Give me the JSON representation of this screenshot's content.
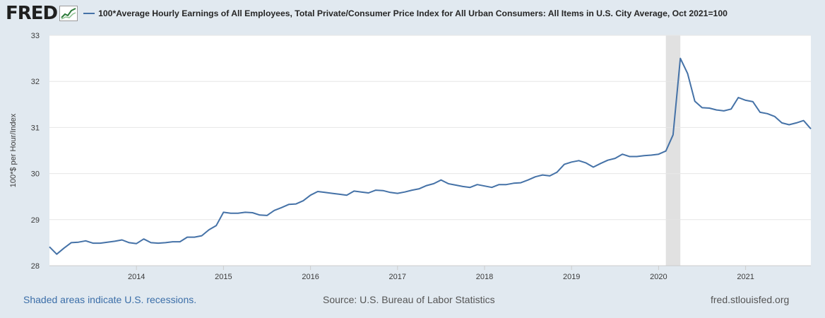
{
  "header": {
    "logo_text": "FRED",
    "logo_icon": "trend-chart-icon",
    "legend_label": "100*Average Hourly Earnings of All Employees, Total Private/Consumer Price Index for All Urban Consumers: All Items in U.S. City Average, Oct 2021=100"
  },
  "footer": {
    "recessions_note": "Shaded areas indicate U.S. recessions.",
    "source": "Source: U.S. Bureau of Labor Statistics",
    "site": "fred.stlouisfed.org"
  },
  "colors": {
    "line": "#4572a7",
    "recession": "#e1e1e1",
    "plot_bg": "#ffffff",
    "page_bg": "#e1e9f0",
    "grid": "#e6e6e6"
  },
  "chart_data": {
    "type": "line",
    "title": "",
    "xlabel": "",
    "ylabel": "100*$ per Hour/Index",
    "ylim": [
      28,
      33
    ],
    "yticks": [
      28,
      29,
      30,
      31,
      32,
      33
    ],
    "xlim": [
      "2013-01",
      "2021-10"
    ],
    "xticks": [
      "2014",
      "2015",
      "2016",
      "2017",
      "2018",
      "2019",
      "2020",
      "2021"
    ],
    "grid": true,
    "legend": "top",
    "recessions": [
      [
        "2020-02",
        "2020-04"
      ]
    ],
    "series": [
      {
        "name": "100*Average Hourly Earnings of All Employees, Total Private/Consumer Price Index for All Urban Consumers: All Items in U.S. City Average, Oct 2021=100",
        "x": [
          "2013-01",
          "2013-02",
          "2013-03",
          "2013-04",
          "2013-05",
          "2013-06",
          "2013-07",
          "2013-08",
          "2013-09",
          "2013-10",
          "2013-11",
          "2013-12",
          "2014-01",
          "2014-02",
          "2014-03",
          "2014-04",
          "2014-05",
          "2014-06",
          "2014-07",
          "2014-08",
          "2014-09",
          "2014-10",
          "2014-11",
          "2014-12",
          "2015-01",
          "2015-02",
          "2015-03",
          "2015-04",
          "2015-05",
          "2015-06",
          "2015-07",
          "2015-08",
          "2015-09",
          "2015-10",
          "2015-11",
          "2015-12",
          "2016-01",
          "2016-02",
          "2016-03",
          "2016-04",
          "2016-05",
          "2016-06",
          "2016-07",
          "2016-08",
          "2016-09",
          "2016-10",
          "2016-11",
          "2016-12",
          "2017-01",
          "2017-02",
          "2017-03",
          "2017-04",
          "2017-05",
          "2017-06",
          "2017-07",
          "2017-08",
          "2017-09",
          "2017-10",
          "2017-11",
          "2017-12",
          "2018-01",
          "2018-02",
          "2018-03",
          "2018-04",
          "2018-05",
          "2018-06",
          "2018-07",
          "2018-08",
          "2018-09",
          "2018-10",
          "2018-11",
          "2018-12",
          "2019-01",
          "2019-02",
          "2019-03",
          "2019-04",
          "2019-05",
          "2019-06",
          "2019-07",
          "2019-08",
          "2019-09",
          "2019-10",
          "2019-11",
          "2019-12",
          "2020-01",
          "2020-02",
          "2020-03",
          "2020-04",
          "2020-05",
          "2020-06",
          "2020-07",
          "2020-08",
          "2020-09",
          "2020-10",
          "2020-11",
          "2020-12",
          "2021-01",
          "2021-02",
          "2021-03",
          "2021-04",
          "2021-05",
          "2021-06",
          "2021-07",
          "2021-08",
          "2021-09",
          "2021-10"
        ],
        "y": [
          28.41,
          28.25,
          28.38,
          28.5,
          28.51,
          28.54,
          28.49,
          28.49,
          28.51,
          28.53,
          28.56,
          28.5,
          28.48,
          28.58,
          28.5,
          28.49,
          28.5,
          28.52,
          28.52,
          28.62,
          28.62,
          28.65,
          28.78,
          28.87,
          29.16,
          29.14,
          29.14,
          29.16,
          29.15,
          29.1,
          29.09,
          29.2,
          29.26,
          29.33,
          29.34,
          29.41,
          29.53,
          29.61,
          29.59,
          29.57,
          29.55,
          29.53,
          29.62,
          29.6,
          29.58,
          29.64,
          29.63,
          29.59,
          29.57,
          29.6,
          29.64,
          29.67,
          29.74,
          29.78,
          29.86,
          29.78,
          29.75,
          29.72,
          29.7,
          29.76,
          29.73,
          29.7,
          29.76,
          29.76,
          29.79,
          29.8,
          29.86,
          29.93,
          29.97,
          29.95,
          30.03,
          30.2,
          30.25,
          30.28,
          30.23,
          30.14,
          30.22,
          30.29,
          30.33,
          30.42,
          30.37,
          30.37,
          30.39,
          30.4,
          30.42,
          30.49,
          30.84,
          32.5,
          32.17,
          31.57,
          31.43,
          31.42,
          31.38,
          31.36,
          31.4,
          31.65,
          31.59,
          31.56,
          31.33,
          31.3,
          31.24,
          31.1,
          31.06,
          31.1,
          31.15,
          30.97
        ]
      }
    ]
  }
}
